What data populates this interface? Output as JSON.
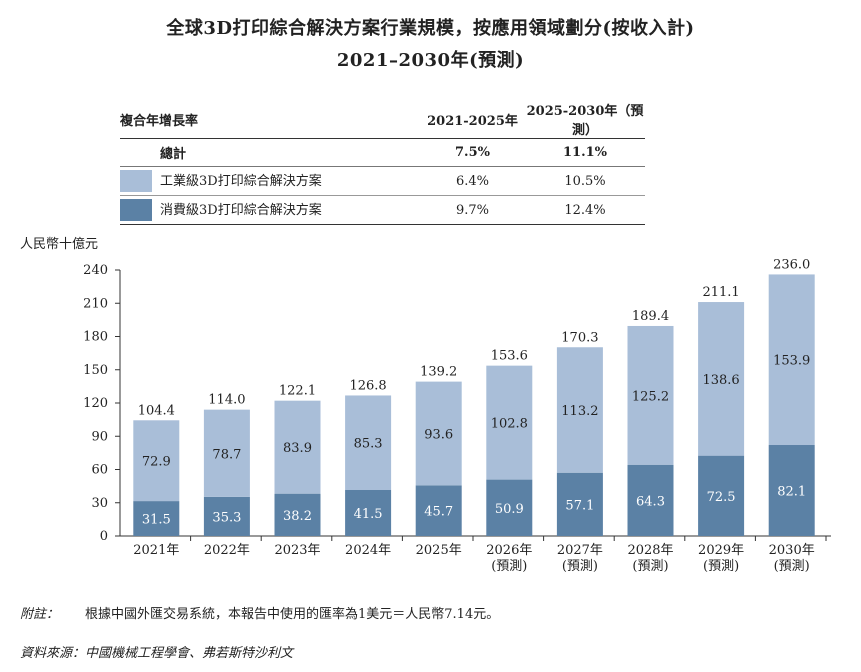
{
  "title_line1": "全球3D打印綜合解決方案行業規模，按應用領域劃分(按收入計)",
  "title_line2": "2021–2030年(預測)",
  "cagr_table": {
    "header": [
      "複合年增長率",
      "2021-2025年",
      "2025-2030年（預測）"
    ],
    "total": [
      "總計",
      "7.5%",
      "11.1%"
    ],
    "rows": [
      {
        "label": "工業級3D打印綜合解決方案",
        "v1": "6.4%",
        "v2": "10.5%",
        "color": "#a9bed8"
      },
      {
        "label": "消費級3D打印綜合解決方案",
        "v1": "9.7%",
        "v2": "12.4%",
        "color": "#5b81a5"
      }
    ]
  },
  "unit_label": "人民幣十億元",
  "chart_data": {
    "type": "bar",
    "stacked": true,
    "categories": [
      "2021年",
      "2022年",
      "2023年",
      "2024年",
      "2025年",
      "2026年\n(預測)",
      "2027年\n(預測)",
      "2028年\n(預測)",
      "2029年\n(預測)",
      "2030年\n(預測)"
    ],
    "series": [
      {
        "name": "消費級3D打印綜合解決方案",
        "color": "#5b81a5",
        "values": [
          31.5,
          35.3,
          38.2,
          41.5,
          45.7,
          50.9,
          57.1,
          64.3,
          72.5,
          82.1
        ]
      },
      {
        "name": "工業級3D打印綜合解決方案",
        "color": "#a9bed8",
        "values": [
          72.9,
          78.7,
          83.9,
          85.3,
          93.6,
          102.8,
          113.2,
          125.2,
          138.6,
          153.9
        ]
      }
    ],
    "totals": [
      104.4,
      114.0,
      122.1,
      126.8,
      139.2,
      153.6,
      170.3,
      189.4,
      211.1,
      236.0
    ],
    "value_labels_consumer": [
      "31.5",
      "35.3",
      "38.2",
      "41.5",
      "45.7",
      "50.9",
      "57.1",
      "64.3",
      "72.5",
      "82.1"
    ],
    "value_labels_industrial": [
      "72.9",
      "78.7",
      "83.9",
      "85.3",
      "93.6",
      "102.8",
      "113.2",
      "125.2",
      "138.6",
      "153.9"
    ],
    "value_labels_total": [
      "104.4",
      "114.0",
      "122.1",
      "126.8",
      "139.2",
      "153.6",
      "170.3",
      "189.4",
      "211.1",
      "236.0"
    ],
    "yticks": [
      0,
      30,
      60,
      90,
      120,
      150,
      180,
      210,
      240
    ],
    "ylim": [
      0,
      240
    ],
    "grid": false
  },
  "note": {
    "label": "附註：",
    "text": "根據中國外匯交易系統，本報告中使用的匯率為1美元＝人民幣7.14元。"
  },
  "source": "資料來源：中國機械工程學會、弗若斯特沙利文"
}
